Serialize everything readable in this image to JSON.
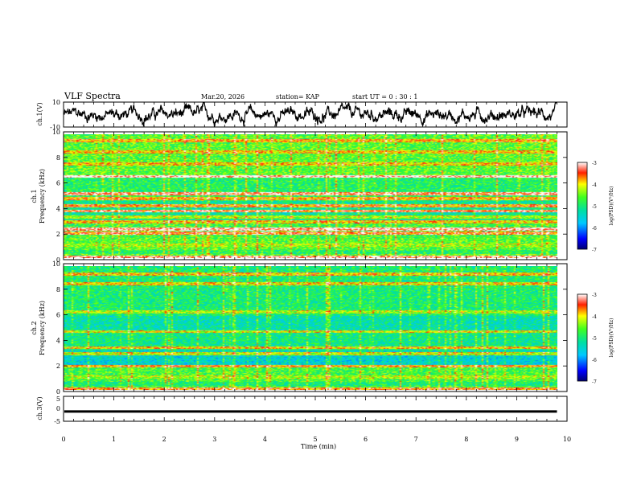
{
  "header": {
    "title": "VLF Spectra",
    "date": "Mar.20, 2026",
    "station": "station= KAP",
    "start": "start  UT =   0 : 30 : 1"
  },
  "chart_data": [
    {
      "type": "line",
      "panel": "ch1-waveform",
      "ylabel": "ch.1(V)",
      "ylim": [
        -10,
        10
      ],
      "yticks": [
        "10",
        "-10"
      ],
      "x_range_min": [
        0,
        9.8
      ],
      "description_values": "noisy waveform with amplitude roughly between -8 and +8 V"
    },
    {
      "type": "heatmap",
      "panel": "ch1-spectrogram",
      "ylabel": "ch.1 Frequency (kHz)",
      "ylabel_line1": "ch.1",
      "ylabel_line2": "Frequency (kHz)",
      "ylim": [
        0,
        10
      ],
      "yticks": [
        "0",
        "2",
        "4",
        "6",
        "8",
        "10"
      ],
      "colorbar": {
        "label": "log(PSD)(V²/Hz)",
        "range": [
          -7,
          -3
        ],
        "ticks": [
          "-3",
          "-4",
          "-5",
          "-6",
          "-7"
        ]
      },
      "bands_khz": [
        {
          "freq": 0.2,
          "level": -4.6
        },
        {
          "freq": 1.0,
          "level": -4.4
        },
        {
          "freq": 2.0,
          "level": -3.6
        },
        {
          "freq": 2.3,
          "level": -3.3
        },
        {
          "freq": 2.9,
          "level": -4.0
        },
        {
          "freq": 3.3,
          "level": -4.4
        },
        {
          "freq": 3.8,
          "level": -3.5
        },
        {
          "freq": 4.2,
          "level": -3.8
        },
        {
          "freq": 4.8,
          "level": -3.9
        },
        {
          "freq": 5.2,
          "level": -3.4
        },
        {
          "freq": 6.6,
          "level": -3.1
        },
        {
          "freq": 7.6,
          "level": -4.0
        },
        {
          "freq": 8.6,
          "level": -4.0
        },
        {
          "freq": 9.5,
          "level": -3.9
        }
      ]
    },
    {
      "type": "heatmap",
      "panel": "ch2-spectrogram",
      "ylabel": "ch.2 Frequency (kHz)",
      "ylabel_line1": "ch.2",
      "ylabel_line2": "Frequency (kHz)",
      "ylim": [
        0,
        10
      ],
      "yticks": [
        "0",
        "2",
        "4",
        "6",
        "8",
        "10"
      ],
      "colorbar": {
        "label": "log(PSD)(V²/Hz)",
        "range": [
          -7,
          -3
        ],
        "ticks": [
          "-3",
          "-4",
          "-5",
          "-6",
          "-7"
        ]
      },
      "bands_khz": [
        {
          "freq": 0.2,
          "level": -4.8
        },
        {
          "freq": 1.0,
          "level": -4.4
        },
        {
          "freq": 1.9,
          "level": -3.8
        },
        {
          "freq": 2.9,
          "level": -4.3
        },
        {
          "freq": 3.4,
          "level": -4.0
        },
        {
          "freq": 4.7,
          "level": -4.2
        },
        {
          "freq": 6.3,
          "level": -4.4
        },
        {
          "freq": 8.6,
          "level": -4.1
        },
        {
          "freq": 9.4,
          "level": -4.0
        }
      ]
    },
    {
      "type": "line",
      "panel": "ch3-waveform",
      "ylabel": "ch.3(V)",
      "ylim": [
        -5,
        5
      ],
      "yticks": [
        "5",
        "0",
        "-5"
      ],
      "level_v": [
        -1.4,
        -0.6
      ],
      "xlabel": "Time  (min)",
      "xlim": [
        0,
        10
      ],
      "xticks": [
        "0",
        "1",
        "2",
        "3",
        "4",
        "5",
        "6",
        "7",
        "8",
        "9",
        "10"
      ]
    }
  ]
}
